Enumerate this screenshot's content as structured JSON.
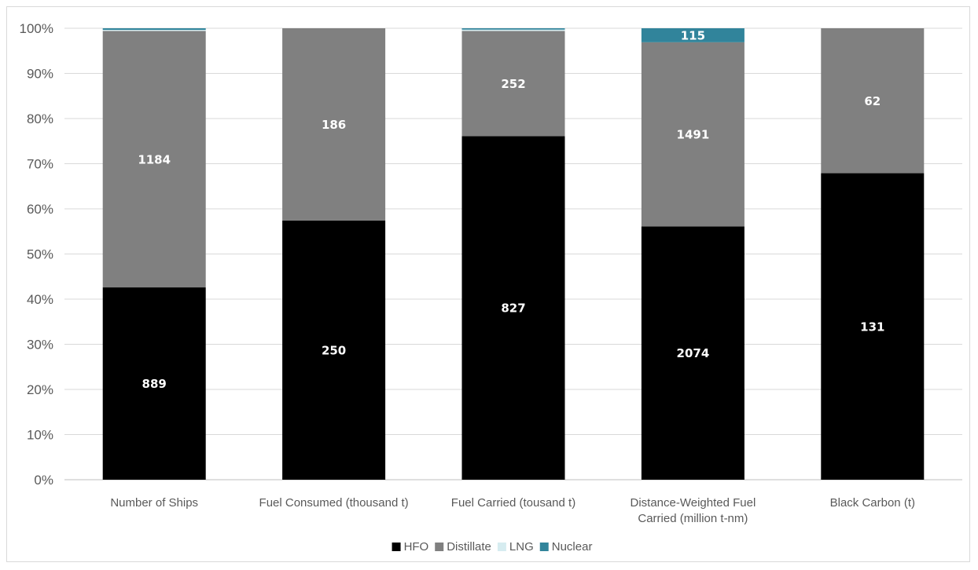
{
  "chart_data": {
    "type": "bar",
    "stacked": true,
    "percent_stacked": true,
    "title": "",
    "xlabel": "",
    "ylabel": "",
    "ylim": [
      0,
      100
    ],
    "y_ticks": [
      "0%",
      "10%",
      "20%",
      "30%",
      "40%",
      "50%",
      "60%",
      "70%",
      "80%",
      "90%",
      "100%"
    ],
    "grid": true,
    "legend_position": "bottom",
    "categories": [
      [
        "Number of Ships"
      ],
      [
        "Fuel Consumed (thousand t)"
      ],
      [
        "Fuel Carried (tousand t)"
      ],
      [
        "Distance-Weighted Fuel",
        "Carried (million t-nm)"
      ],
      [
        "Black Carbon (t)"
      ]
    ],
    "series": [
      {
        "name": "HFO",
        "color": "#000000",
        "percent": [
          42.6,
          57.4,
          76.1,
          56.1,
          67.9
        ],
        "labels": [
          "889",
          "250",
          "827",
          "2074",
          "131"
        ],
        "label_color": "#ffffff"
      },
      {
        "name": "Distillate",
        "color": "#808080",
        "percent": [
          56.8,
          42.6,
          23.3,
          40.8,
          32.1
        ],
        "labels": [
          "1184",
          "186",
          "252",
          "1491",
          "62"
        ],
        "label_color": "#ffffff"
      },
      {
        "name": "LNG",
        "color": "#d6ecf0",
        "percent": [
          0.25,
          0,
          0.3,
          0,
          0
        ],
        "labels": [
          "",
          "",
          "",
          "",
          ""
        ],
        "label_color": "#ffffff"
      },
      {
        "name": "Nuclear",
        "color": "#31849b",
        "percent": [
          0.35,
          0,
          0.3,
          3.1,
          0
        ],
        "labels": [
          "",
          "",
          "",
          "115",
          ""
        ],
        "label_color": "#ffffff"
      }
    ]
  }
}
